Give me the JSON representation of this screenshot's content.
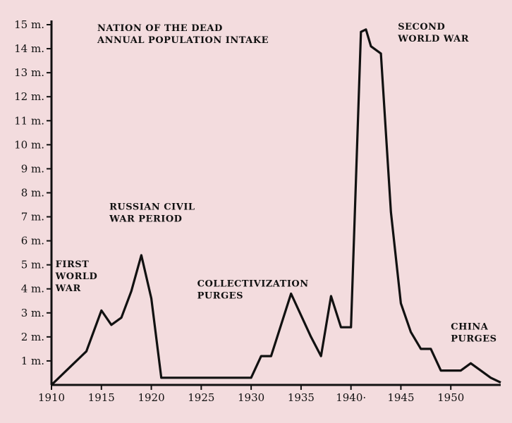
{
  "chart_data": {
    "type": "line",
    "title_lines": [
      "NATION OF THE DEAD",
      "ANNUAL POPULATION INTAKE"
    ],
    "xlabel": "",
    "ylabel": "",
    "xlim": [
      1910,
      1955
    ],
    "ylim": [
      0,
      15
    ],
    "x_ticks": [
      1910,
      1915,
      1920,
      1925,
      1930,
      1935,
      1940,
      1945,
      1950
    ],
    "x_tick_labels": [
      "1910",
      "1915",
      "1920",
      "1925",
      "1930",
      "1935",
      "1940·",
      "1945",
      "1950"
    ],
    "y_ticks": [
      1,
      2,
      3,
      4,
      5,
      6,
      7,
      8,
      9,
      10,
      11,
      12,
      13,
      14,
      15
    ],
    "y_tick_labels": [
      "1 m.",
      "2 m.",
      "3 m.",
      "4 m.",
      "5 m.",
      "6 m.",
      "7 m.",
      "8 m.",
      "9 m.",
      "10 m.",
      "11 m.",
      "12 m.",
      "13 m.",
      "14 m.",
      "15 m."
    ],
    "grid": false,
    "series": [
      {
        "x": [
          1910,
          1912,
          1913.5,
          1915,
          1916,
          1917,
          1918,
          1919,
          1920,
          1921,
          1930,
          1931,
          1932,
          1934,
          1936,
          1937,
          1938,
          1939,
          1940,
          1941,
          1941.5,
          1942,
          1943,
          1944,
          1945,
          1946,
          1947,
          1948,
          1949,
          1950,
          1951,
          1952,
          1953,
          1954,
          1955
        ],
        "y": [
          0,
          0.8,
          1.4,
          3.1,
          2.5,
          2.8,
          3.9,
          5.4,
          3.6,
          0.3,
          0.3,
          1.2,
          1.2,
          3.8,
          2.0,
          1.2,
          3.7,
          2.4,
          2.4,
          14.7,
          14.8,
          14.1,
          13.8,
          7.2,
          3.4,
          2.2,
          1.5,
          1.5,
          0.6,
          0.6,
          0.6,
          0.9,
          0.6,
          0.3,
          0.1
        ]
      }
    ],
    "annotations": [
      {
        "lines": [
          "FIRST",
          "WORLD",
          "WAR"
        ],
        "x": 1910.4,
        "y": 4.9
      },
      {
        "lines": [
          "RUSSIAN CIVIL",
          "WAR PERIOD"
        ],
        "x": 1915.8,
        "y": 7.3
      },
      {
        "lines": [
          "COLLECTIVIZATION",
          "PURGES"
        ],
        "x": 1924.6,
        "y": 4.1
      },
      {
        "lines": [
          "SECOND",
          "WORLD WAR"
        ],
        "x": 1944.7,
        "y": 14.8
      },
      {
        "lines": [
          "CHINA",
          "PURGES"
        ],
        "x": 1950.0,
        "y": 2.3
      }
    ]
  }
}
